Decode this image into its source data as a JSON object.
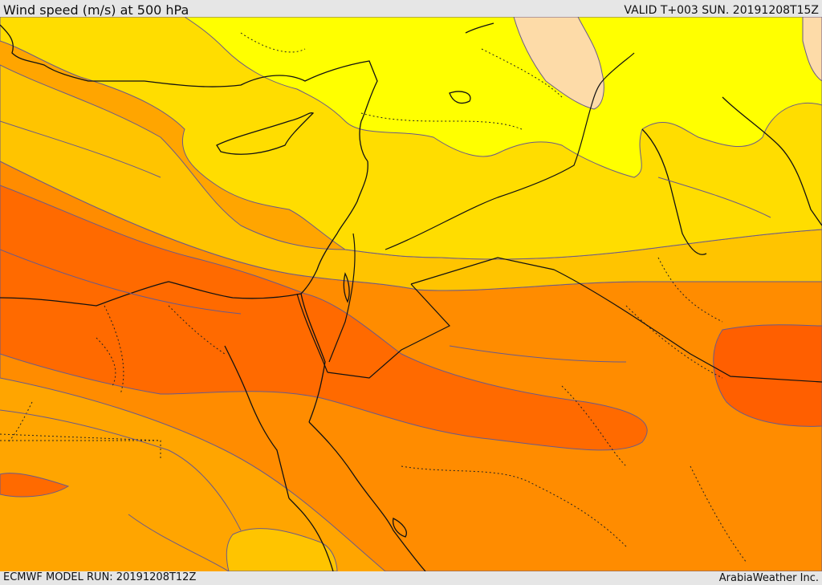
{
  "header": {
    "title": "Wind speed (m/s) at 500 hPa",
    "valid": "VALID T+003 SUN. 20191208T15Z"
  },
  "footer": {
    "model_run": "ECMWF MODEL RUN: 20191208T12Z",
    "credit": "ArabiaWeather Inc."
  },
  "colors": {
    "band_light_orange": "#fddba8",
    "band_yellow": "#ffff00",
    "band_gold": "#ffdd00",
    "band_amber": "#ffc400",
    "band_orange_light": "#ffa500",
    "band_orange": "#ff8c00",
    "band_orange_dark": "#ff7a00",
    "band_red_orange": "#ff5f00",
    "contour": "#6a5a8a",
    "coastline": "#111111"
  }
}
